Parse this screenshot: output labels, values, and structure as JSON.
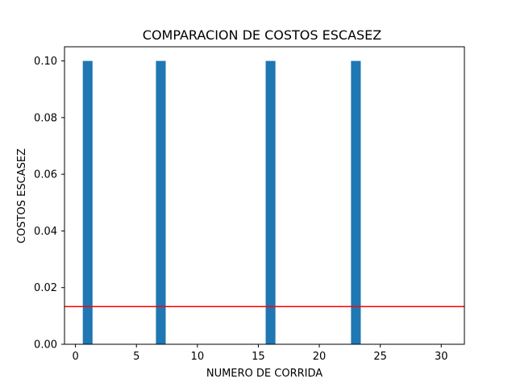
{
  "chart_data": {
    "type": "bar",
    "title": "COMPARACION DE  COSTOS ESCASEZ",
    "xlabel": "NUMERO DE CORRIDA",
    "ylabel": "COSTOS ESCASEZ",
    "xlim": [
      -0.9,
      31.9
    ],
    "ylim": [
      0,
      0.105
    ],
    "x_ticks": [
      0,
      5,
      10,
      15,
      20,
      25,
      30
    ],
    "x_tick_labels": [
      "0",
      "5",
      "10",
      "15",
      "20",
      "25",
      "30"
    ],
    "y_ticks": [
      0,
      0.02,
      0.04,
      0.06,
      0.08,
      0.1
    ],
    "y_tick_labels": [
      "0.00",
      "0.02",
      "0.04",
      "0.06",
      "0.08",
      "0.10"
    ],
    "bar_width": 0.8,
    "x": [
      1,
      7,
      16,
      23
    ],
    "values": [
      0.1,
      0.1,
      0.1,
      0.1
    ],
    "bar_color": "#1f77b4",
    "reference_line": {
      "y": 0.0133,
      "color": "#ff0000"
    },
    "grid": false,
    "legend": "none"
  }
}
